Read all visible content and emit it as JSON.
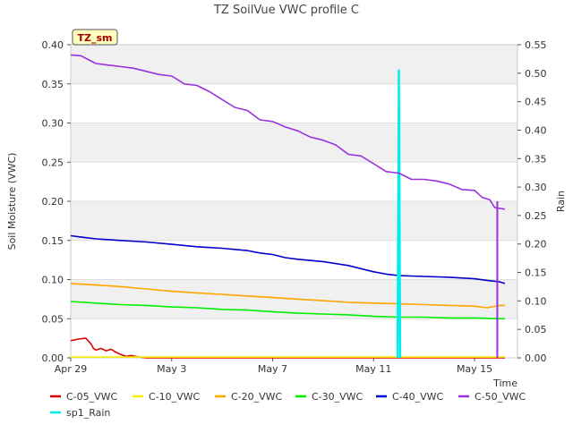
{
  "chart_data": {
    "type": "line",
    "title": "TZ SoilVue VWC profile C",
    "xlabel": "Time",
    "ylabel": "Soil Moisture (VWC)",
    "y2label": "Rain",
    "station_badge": "TZ_sm",
    "x_ticks": [
      "Apr 29",
      "May 3",
      "May 7",
      "May 11",
      "May 15"
    ],
    "x_tick_days": [
      0,
      4,
      8,
      12,
      16
    ],
    "xlim_days": [
      0,
      17.7
    ],
    "ylim": [
      0,
      0.4
    ],
    "y_ticks": [
      "0.00",
      "0.05",
      "0.10",
      "0.15",
      "0.20",
      "0.25",
      "0.30",
      "0.35",
      "0.40"
    ],
    "y_tick_values": [
      0,
      0.05,
      0.1,
      0.15,
      0.2,
      0.25,
      0.3,
      0.35,
      0.4
    ],
    "y2lim": [
      0,
      0.55
    ],
    "y2_ticks": [
      "0.00",
      "0.05",
      "0.10",
      "0.15",
      "0.20",
      "0.25",
      "0.30",
      "0.35",
      "0.40",
      "0.45",
      "0.50",
      "0.55"
    ],
    "y2_tick_values": [
      0,
      0.05,
      0.1,
      0.15,
      0.2,
      0.25,
      0.3,
      0.35,
      0.4,
      0.45,
      0.5,
      0.55
    ],
    "grid": true,
    "legend_position": "bottom",
    "series": [
      {
        "name": "C-05_VWC",
        "color": "#dd0000",
        "axis": "left",
        "x": [
          0,
          0.3,
          0.6,
          0.8,
          0.9,
          1.0,
          1.2,
          1.4,
          1.6,
          1.8,
          2.0,
          2.2,
          2.4,
          2.7,
          3.0,
          5.0,
          17.2
        ],
        "y": [
          0.022,
          0.024,
          0.025,
          0.018,
          0.012,
          0.01,
          0.012,
          0.009,
          0.011,
          0.007,
          0.004,
          0.002,
          0.003,
          0.001,
          0.0,
          0.0,
          0.0
        ]
      },
      {
        "name": "C-10_VWC",
        "color": "#f2f200",
        "axis": "left",
        "x": [
          0,
          17.2
        ],
        "y": [
          0.001,
          0.001
        ]
      },
      {
        "name": "C-20_VWC",
        "color": "#ffa500",
        "axis": "left",
        "x": [
          0,
          1,
          2,
          3,
          4,
          5,
          6,
          7,
          8,
          9,
          10,
          11,
          12,
          13,
          14,
          15,
          16,
          16.5,
          17.0,
          17.2
        ],
        "y": [
          0.095,
          0.093,
          0.091,
          0.088,
          0.085,
          0.083,
          0.081,
          0.079,
          0.077,
          0.075,
          0.073,
          0.071,
          0.07,
          0.069,
          0.068,
          0.067,
          0.066,
          0.064,
          0.067,
          0.067
        ]
      },
      {
        "name": "C-30_VWC",
        "color": "#00ee00",
        "axis": "left",
        "x": [
          0,
          1,
          2,
          3,
          4,
          5,
          6,
          7,
          8,
          9,
          10,
          11,
          12,
          13,
          14,
          15,
          16,
          17,
          17.2
        ],
        "y": [
          0.072,
          0.07,
          0.068,
          0.067,
          0.065,
          0.064,
          0.062,
          0.061,
          0.059,
          0.057,
          0.056,
          0.055,
          0.053,
          0.052,
          0.052,
          0.051,
          0.051,
          0.05,
          0.05
        ]
      },
      {
        "name": "C-40_VWC",
        "color": "#0000cc",
        "axis": "left",
        "x": [
          0,
          0.5,
          1,
          2,
          3,
          4,
          5,
          6,
          7,
          7.5,
          8,
          8.5,
          9,
          10,
          11,
          11.5,
          12,
          12.5,
          13,
          14,
          15,
          16,
          16.5,
          17,
          17.2
        ],
        "y": [
          0.156,
          0.154,
          0.152,
          0.15,
          0.148,
          0.145,
          0.142,
          0.14,
          0.137,
          0.134,
          0.132,
          0.128,
          0.126,
          0.123,
          0.118,
          0.114,
          0.11,
          0.107,
          0.105,
          0.104,
          0.103,
          0.101,
          0.099,
          0.097,
          0.095
        ]
      },
      {
        "name": "C-50_VWC",
        "color": "#9a30e0",
        "axis": "left",
        "x": [
          0,
          0.4,
          1.0,
          1.5,
          2.0,
          2.5,
          3.0,
          3.5,
          4.0,
          4.5,
          5.0,
          5.5,
          6.0,
          6.5,
          7.0,
          7.5,
          8.0,
          8.5,
          9.0,
          9.5,
          10.0,
          10.5,
          11.0,
          11.5,
          12.0,
          12.5,
          13.0,
          13.5,
          14.0,
          14.5,
          15.0,
          15.5,
          16.0,
          16.3,
          16.6,
          16.8,
          17.2
        ],
        "y": [
          0.387,
          0.386,
          0.376,
          0.374,
          0.372,
          0.37,
          0.366,
          0.362,
          0.36,
          0.35,
          0.348,
          0.34,
          0.33,
          0.32,
          0.316,
          0.304,
          0.302,
          0.295,
          0.29,
          0.282,
          0.278,
          0.272,
          0.26,
          0.258,
          0.248,
          0.238,
          0.236,
          0.228,
          0.228,
          0.226,
          0.222,
          0.215,
          0.214,
          0.205,
          0.202,
          0.192,
          0.19
        ]
      },
      {
        "name": "sp1_Rain",
        "color": "#00eeee",
        "axis": "right",
        "x": [
          12.95,
          13.0,
          13.05
        ],
        "y": [
          0.0,
          0.505,
          0.0
        ]
      }
    ]
  }
}
